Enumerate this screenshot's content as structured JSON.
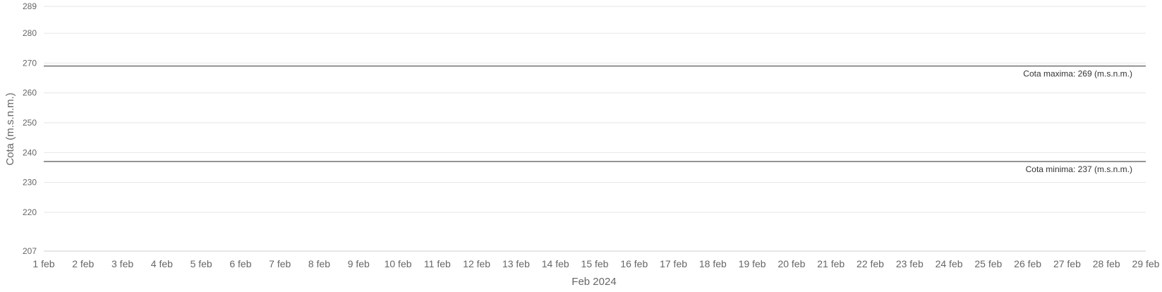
{
  "chart_data": {
    "type": "line",
    "xlabel": "Feb 2024",
    "ylabel": "Cota (m.s.n.m.)",
    "ylim": [
      207,
      289
    ],
    "y_ticks": [
      289,
      280,
      270,
      260,
      250,
      240,
      230,
      220,
      207
    ],
    "categories": [
      "1 feb",
      "2 feb",
      "3 feb",
      "4 feb",
      "5 feb",
      "6 feb",
      "7 feb",
      "8 feb",
      "9 feb",
      "10 feb",
      "11 feb",
      "12 feb",
      "13 feb",
      "14 feb",
      "15 feb",
      "16 feb",
      "17 feb",
      "18 feb",
      "19 feb",
      "20 feb",
      "21 feb",
      "22 feb",
      "23 feb",
      "24 feb",
      "25 feb",
      "26 feb",
      "27 feb",
      "28 feb",
      "29 feb"
    ],
    "grid": true,
    "reference_lines": [
      {
        "label": "Cota maxima: 269 (m.s.n.m.)",
        "value": 269,
        "color": "#707070"
      },
      {
        "label": "Cota minima: 237 (m.s.n.m.)",
        "value": 237,
        "color": "#707070"
      }
    ],
    "series": []
  }
}
